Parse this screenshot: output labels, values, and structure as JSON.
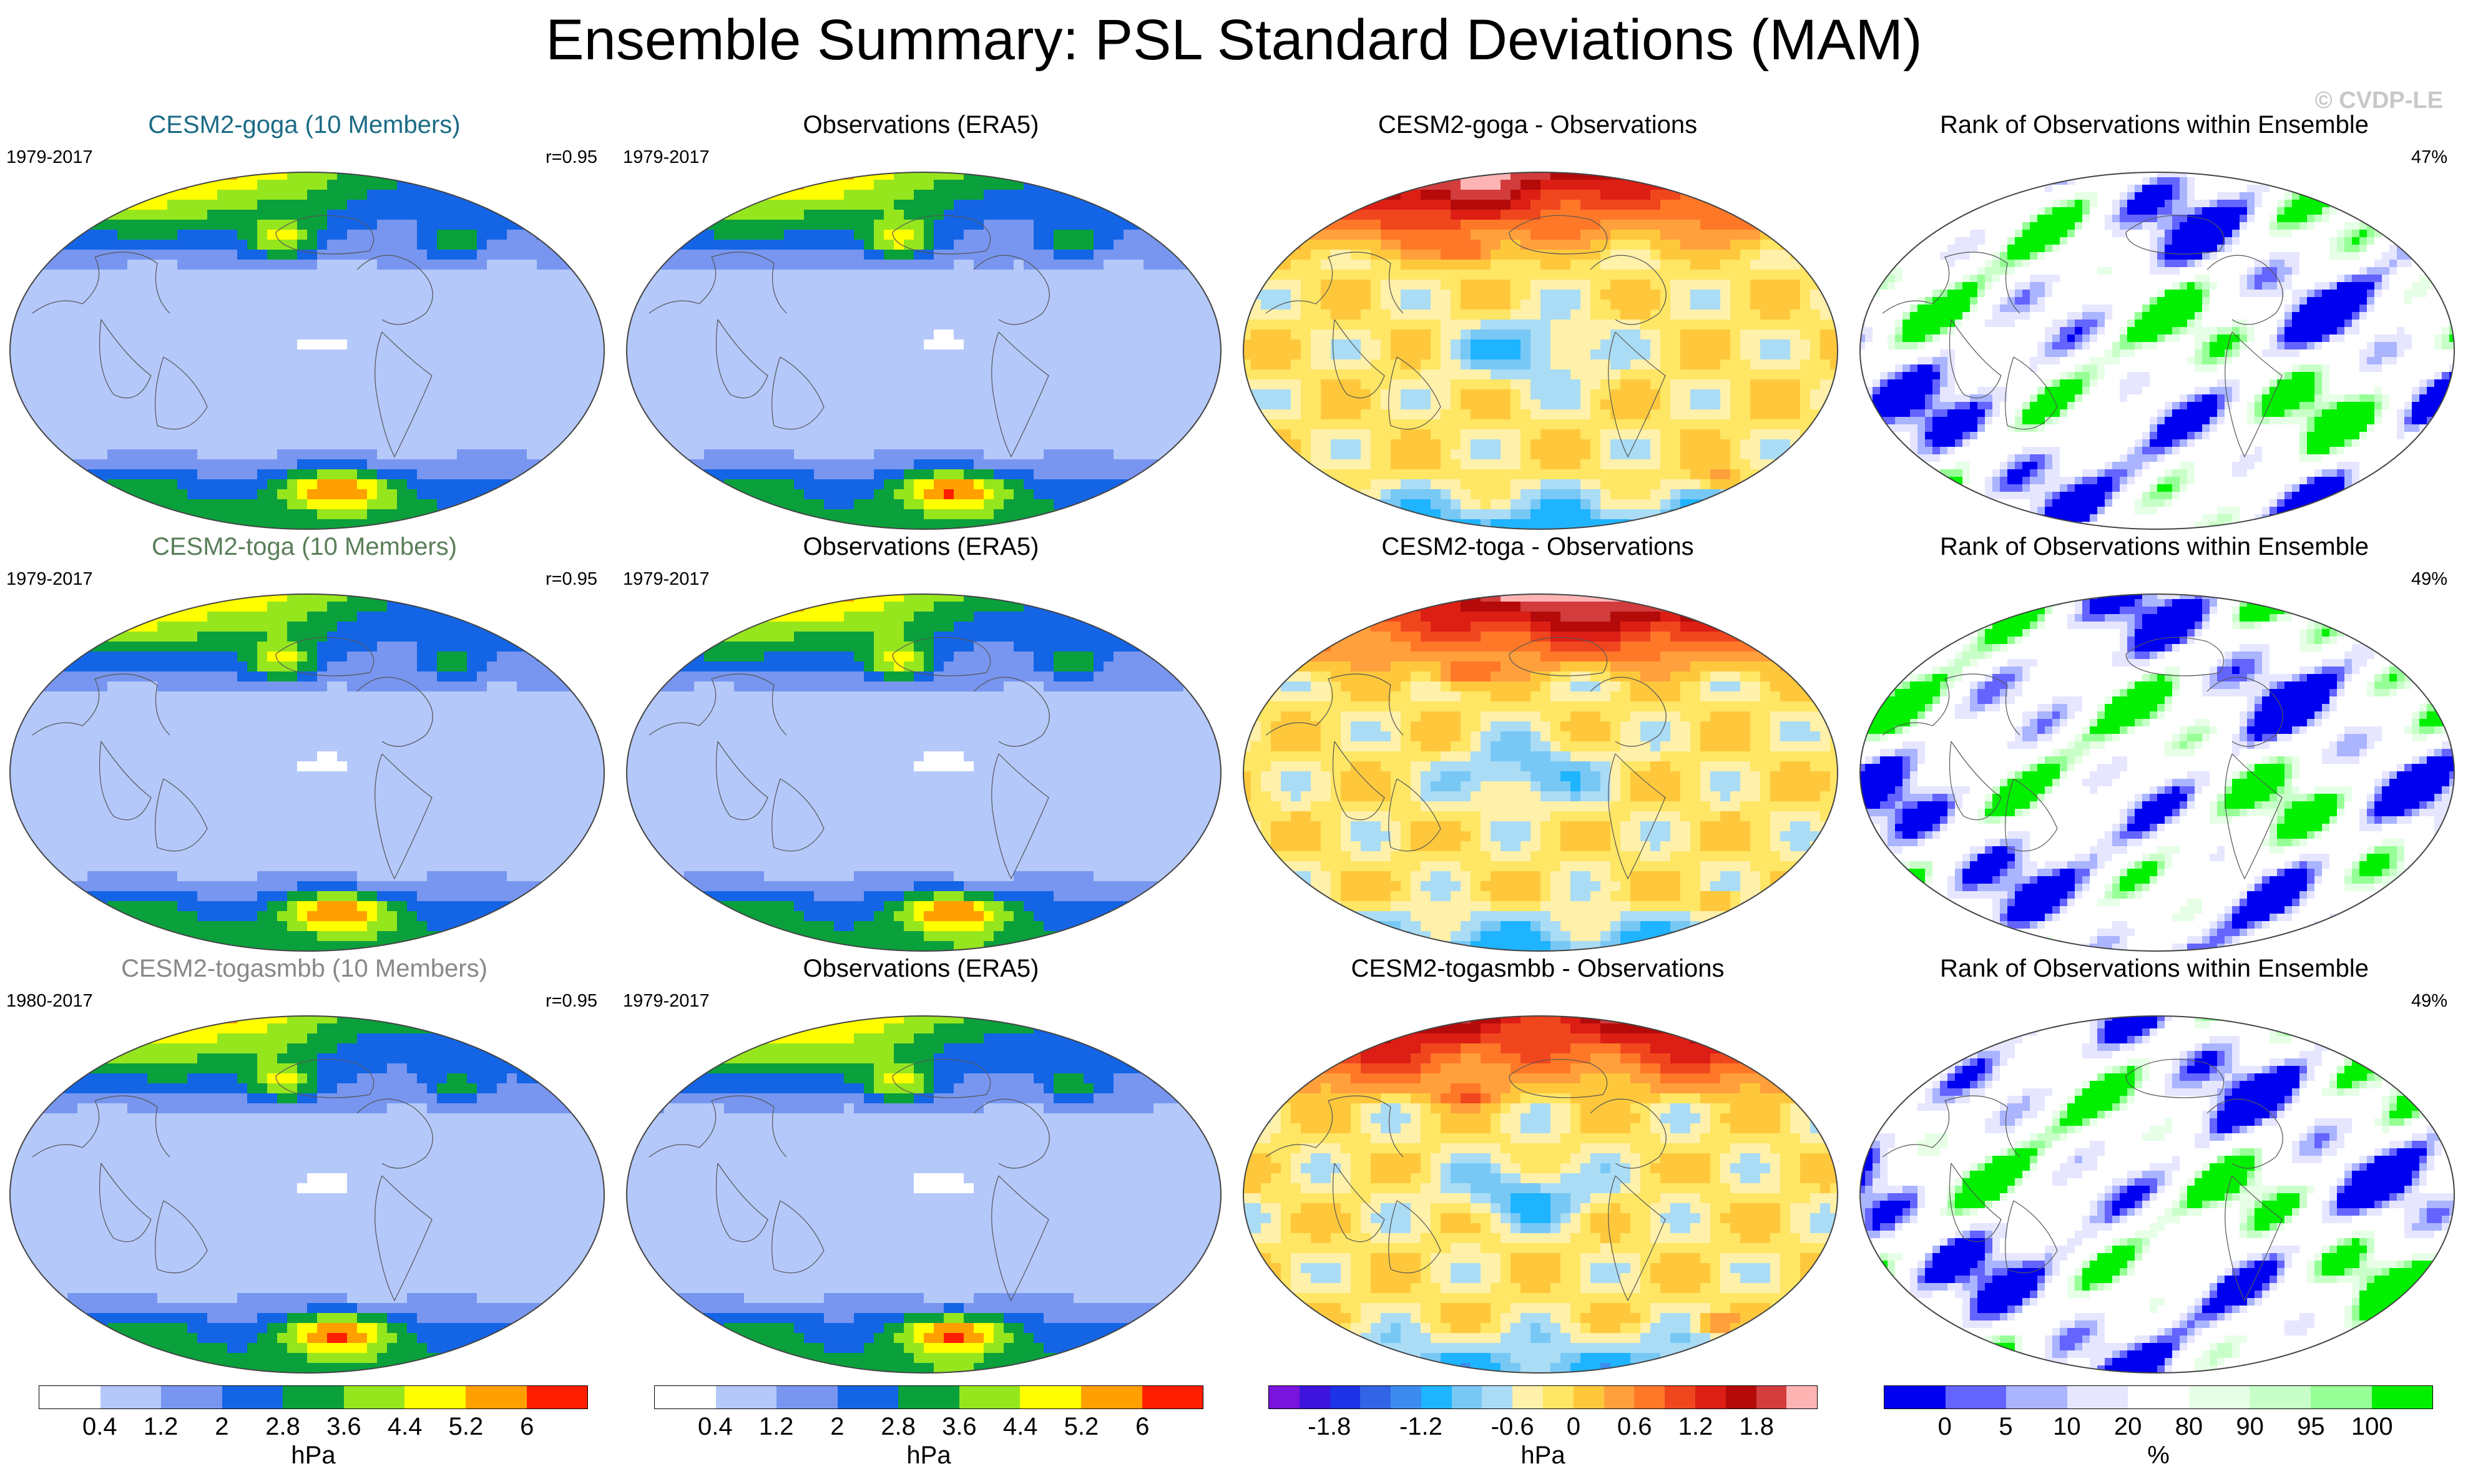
{
  "title": "Ensemble Summary: PSL Standard Deviations (MAM)",
  "copyright": "© CVDP-LE",
  "colors": {
    "goga": "#1c6b86",
    "toga": "#5a7e5a",
    "togasmbb": "#888888"
  },
  "rows": [
    {
      "model": {
        "title": "CESM2-goga (10 Members)",
        "title_color": "#1c6b86",
        "years": "1979-2017",
        "stat": "r=0.95"
      },
      "obs": {
        "title": "Observations (ERA5)",
        "years": "1979-2017"
      },
      "diff": {
        "title": "CESM2-goga - Observations"
      },
      "rank": {
        "title": "Rank of Observations within Ensemble",
        "stat": "47%"
      }
    },
    {
      "model": {
        "title": "CESM2-toga (10 Members)",
        "title_color": "#5a7e5a",
        "years": "1979-2017",
        "stat": "r=0.95"
      },
      "obs": {
        "title": "Observations (ERA5)",
        "years": "1979-2017"
      },
      "diff": {
        "title": "CESM2-toga - Observations"
      },
      "rank": {
        "title": "Rank of Observations within Ensemble",
        "stat": "49%"
      }
    },
    {
      "model": {
        "title": "CESM2-togasmbb (10 Members)",
        "title_color": "#888888",
        "years": "1980-2017",
        "stat": "r=0.95"
      },
      "obs": {
        "title": "Observations (ERA5)",
        "years": "1979-2017"
      },
      "diff": {
        "title": "CESM2-togasmbb - Observations"
      },
      "rank": {
        "title": "Rank of Observations within Ensemble",
        "stat": "49%"
      }
    }
  ],
  "colorbars": {
    "std": {
      "colors": [
        "#ffffff",
        "#b4c8fa",
        "#7896f0",
        "#1464e6",
        "#0aa03c",
        "#96e61e",
        "#ffff00",
        "#ffa000",
        "#ff1e00"
      ],
      "labels": [
        "0.4",
        "1.2",
        "2",
        "2.8",
        "3.6",
        "4.4",
        "5.2",
        "6"
      ],
      "unit": "hPa"
    },
    "diff": {
      "colors": [
        "#7814dc",
        "#3c14dc",
        "#1e32e6",
        "#3264e6",
        "#3c8cf0",
        "#1eb4ff",
        "#78c8f5",
        "#aadcf5",
        "#fff0aa",
        "#ffe664",
        "#ffc83c",
        "#ffa03c",
        "#ff7828",
        "#f0461e",
        "#dc1e14",
        "#b40a0a",
        "#d23c3c",
        "#ffb4b4"
      ],
      "labels": [
        "-1.8",
        "-1.2",
        "-0.6",
        "0",
        "0.6",
        "1.2",
        "1.8"
      ],
      "unit": "hPa"
    },
    "rank": {
      "colors": [
        "#0000f0",
        "#6464ff",
        "#aab4ff",
        "#e6e6ff",
        "#ffffff",
        "#e6ffe6",
        "#c8ffc8",
        "#96ff96",
        "#00f000"
      ],
      "labels": [
        "0",
        "5",
        "10",
        "20",
        "80",
        "90",
        "95",
        "100"
      ],
      "unit": "%"
    }
  }
}
